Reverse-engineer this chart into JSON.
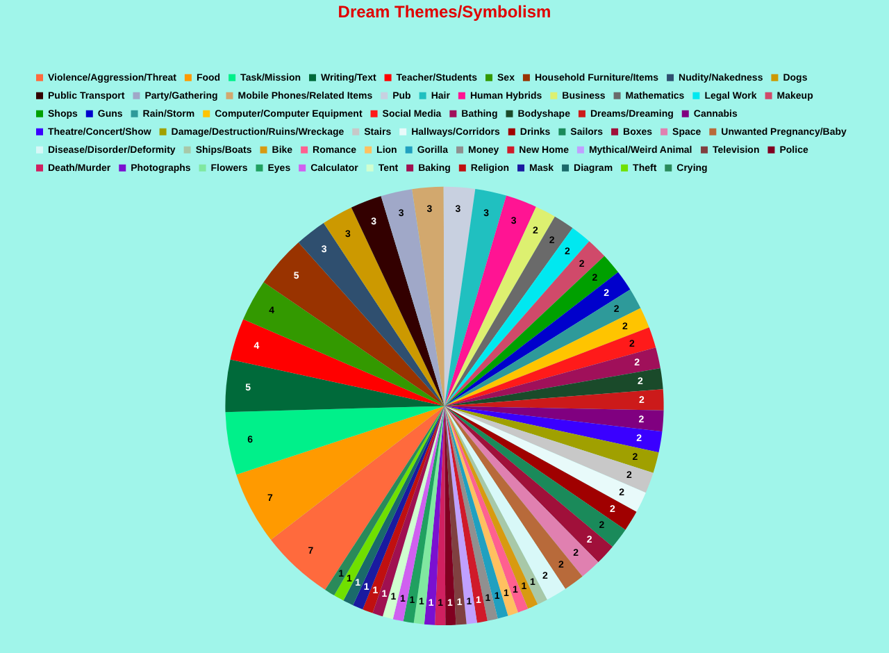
{
  "chart_data": {
    "type": "pie",
    "title": "Dream Themes/Symbolism",
    "legend": "top",
    "data_labels": true,
    "categories": [
      "Violence/Aggression/Threat",
      "Food",
      "Task/Mission",
      "Writing/Text",
      "Teacher/Students",
      "Sex",
      "Household Furniture/Items",
      "Nudity/Nakedness",
      "Dogs",
      "Public Transport",
      "Party/Gathering",
      "Mobile Phones/Related Items",
      "Pub",
      "Hair",
      "Human Hybrids",
      "Business",
      "Mathematics",
      "Legal Work",
      "Makeup",
      "Shops",
      "Guns",
      "Rain/Storm",
      "Computer/Computer Equipment",
      "Social Media",
      "Bathing",
      "Bodyshape",
      "Dreams/Dreaming",
      "Cannabis",
      "Theatre/Concert/Show",
      "Damage/Destruction/Ruins/Wreckage",
      "Stairs",
      "Hallways/Corridors",
      "Drinks",
      "Sailors",
      "Boxes",
      "Space",
      "Unwanted Pregnancy/Baby",
      "Disease/Disorder/Deformity",
      "Ships/Boats",
      "Bike",
      "Romance",
      "Lion",
      "Gorilla",
      "Money",
      "New Home",
      "Mythical/Weird Animal",
      "Television",
      "Police",
      "Death/Murder",
      "Photographs",
      "Flowers",
      "Eyes",
      "Calculator",
      "Tent",
      "Baking",
      "Religion",
      "Mask",
      "Diagram",
      "Theft",
      "Crying"
    ],
    "values": [
      7,
      7,
      6,
      5,
      4,
      4,
      5,
      3,
      3,
      3,
      3,
      3,
      3,
      3,
      3,
      2,
      2,
      2,
      2,
      2,
      2,
      2,
      2,
      2,
      2,
      2,
      2,
      2,
      2,
      2,
      2,
      2,
      2,
      2,
      2,
      2,
      2,
      2,
      1,
      1,
      1,
      1,
      1,
      1,
      1,
      1,
      1,
      1,
      1,
      1,
      1,
      1,
      1,
      1,
      1,
      1,
      1,
      1,
      1,
      1
    ],
    "colors": [
      "#ff6a3d",
      "#ff9a00",
      "#00f08a",
      "#006a3a",
      "#ff0000",
      "#339900",
      "#993300",
      "#2f4f6f",
      "#cc9900",
      "#330000",
      "#a0a8c8",
      "#d2a86e",
      "#c8d0e0",
      "#20c0c0",
      "#ff1493",
      "#ddf070",
      "#6a6a6a",
      "#00e8f0",
      "#d04a6a",
      "#00a000",
      "#0000cc",
      "#2e9a9a",
      "#ffc400",
      "#ff1a1a",
      "#a0105a",
      "#1a4a2a",
      "#cc1a1a",
      "#800080",
      "#3a00ff",
      "#a0a000",
      "#c8c8c8",
      "#e8fafa",
      "#a00000",
      "#1a8a5a",
      "#a0103a",
      "#e080b0",
      "#b86a3a",
      "#d8f8f8",
      "#a8c8a8",
      "#d89a10",
      "#ff6090",
      "#ffc060",
      "#20a0c0",
      "#909090",
      "#d01a2a",
      "#c0a0ff",
      "#804040",
      "#800020",
      "#d02060",
      "#7a10d0",
      "#80e8a0",
      "#20a060",
      "#d060f0",
      "#d0ffd0",
      "#a01050",
      "#c01010",
      "#1a1aa0",
      "#1a6a6a",
      "#70e000",
      "#2a8a5a"
    ]
  }
}
